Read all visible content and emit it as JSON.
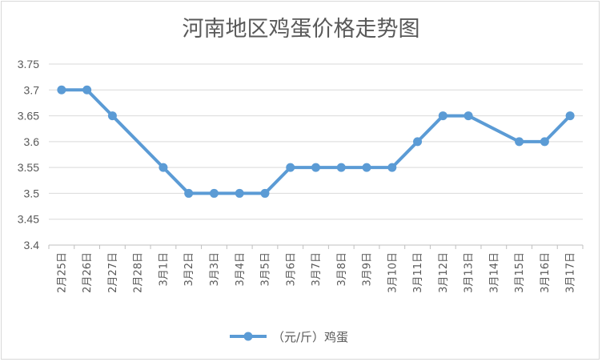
{
  "chart_data": {
    "type": "line",
    "title": "河南地区鸡蛋价格走势图",
    "xlabel": "",
    "ylabel": "",
    "ylim": [
      3.4,
      3.75
    ],
    "ytick_step": 0.05,
    "ytick_labels": [
      "3.4",
      "3.45",
      "3.5",
      "3.55",
      "3.6",
      "3.65",
      "3.7",
      "3.75"
    ],
    "categories": [
      "2月25日",
      "2月26日",
      "2月27日",
      "2月28日",
      "3月1日",
      "3月2日",
      "3月3日",
      "3月4日",
      "3月5日",
      "3月6日",
      "3月7日",
      "3月8日",
      "3月9日",
      "3月10日",
      "3月11日",
      "3月12日",
      "3月13日",
      "3月14日",
      "3月15日",
      "3月16日",
      "3月17日"
    ],
    "series": [
      {
        "name": "（元/斤）鸡蛋",
        "color": "#5b9bd5",
        "values": [
          3.7,
          3.7,
          3.65,
          null,
          3.55,
          3.5,
          3.5,
          3.5,
          3.5,
          3.55,
          3.55,
          3.55,
          3.55,
          3.55,
          3.6,
          3.65,
          3.65,
          null,
          3.6,
          3.6,
          3.65
        ]
      }
    ],
    "grid": true,
    "legend_position": "bottom"
  }
}
